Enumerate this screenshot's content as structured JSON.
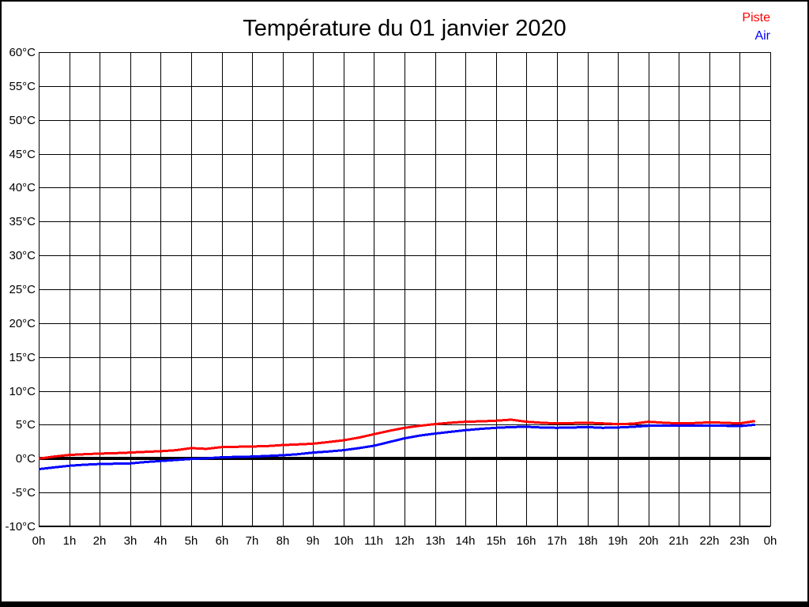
{
  "title": "Température du 01 janvier 2020",
  "legend": {
    "position": "top-right",
    "items": [
      {
        "label": "Piste",
        "color": "#ff0000"
      },
      {
        "label": "Air",
        "color": "#0000ff"
      }
    ]
  },
  "colors": {
    "background": "#ffffff",
    "grid": "#000000",
    "zero_line": "#000000",
    "frame": "#000000",
    "text": "#000000",
    "piste": "#ff0000",
    "air": "#0000ff"
  },
  "chart_data": {
    "type": "line",
    "title": "Température du 01 janvier 2020",
    "xlabel": "",
    "ylabel": "",
    "xlim": [
      0,
      24
    ],
    "ylim": [
      -10,
      60
    ],
    "y_tick_step": 5,
    "x_tick_step": 1,
    "grid": true,
    "zero_line": true,
    "legend_position": "top-right",
    "y_tick_labels": [
      "60°C",
      "55°C",
      "50°C",
      "45°C",
      "40°C",
      "35°C",
      "30°C",
      "25°C",
      "20°C",
      "15°C",
      "10°C",
      "5°C",
      "0°C",
      "-5°C",
      "-10°C"
    ],
    "y_tick_values": [
      60,
      55,
      50,
      45,
      40,
      35,
      30,
      25,
      20,
      15,
      10,
      5,
      0,
      -5,
      -10
    ],
    "x_tick_labels": [
      "0h",
      "1h",
      "2h",
      "3h",
      "4h",
      "5h",
      "6h",
      "7h",
      "8h",
      "9h",
      "10h",
      "11h",
      "12h",
      "13h",
      "14h",
      "15h",
      "16h",
      "17h",
      "18h",
      "19h",
      "20h",
      "21h",
      "22h",
      "23h",
      "0h"
    ],
    "x_tick_values": [
      0,
      1,
      2,
      3,
      4,
      5,
      6,
      7,
      8,
      9,
      10,
      11,
      12,
      13,
      14,
      15,
      16,
      17,
      18,
      19,
      20,
      21,
      22,
      23,
      24
    ],
    "series": [
      {
        "name": "Piste",
        "color": "#ff0000",
        "x": [
          0,
          0.5,
          1,
          1.5,
          2,
          2.5,
          3,
          3.5,
          4,
          4.5,
          5,
          5.5,
          6,
          6.5,
          7,
          7.5,
          8,
          8.5,
          9,
          9.5,
          10,
          10.5,
          11,
          11.5,
          12,
          12.5,
          13,
          13.5,
          14,
          14.5,
          15,
          15.5,
          16,
          16.5,
          17,
          17.5,
          18,
          18.5,
          19,
          19.5,
          20,
          20.5,
          21,
          21.5,
          22,
          22.5,
          23,
          23.5
        ],
        "values": [
          0.0,
          0.3,
          0.55,
          0.65,
          0.75,
          0.8,
          0.9,
          1.0,
          1.1,
          1.25,
          1.55,
          1.45,
          1.7,
          1.75,
          1.8,
          1.85,
          2.0,
          2.1,
          2.2,
          2.45,
          2.7,
          3.1,
          3.6,
          4.1,
          4.55,
          4.85,
          5.1,
          5.3,
          5.45,
          5.5,
          5.6,
          5.75,
          5.45,
          5.3,
          5.2,
          5.25,
          5.3,
          5.2,
          5.1,
          5.15,
          5.45,
          5.3,
          5.2,
          5.25,
          5.35,
          5.3,
          5.2,
          5.55
        ]
      },
      {
        "name": "Air",
        "color": "#0000ff",
        "x": [
          0,
          0.5,
          1,
          1.5,
          2,
          2.5,
          3,
          3.5,
          4,
          4.5,
          5,
          5.5,
          6,
          6.5,
          7,
          7.5,
          8,
          8.5,
          9,
          9.5,
          10,
          10.5,
          11,
          11.5,
          12,
          12.5,
          13,
          13.5,
          14,
          14.5,
          15,
          15.5,
          16,
          16.5,
          17,
          17.5,
          18,
          18.5,
          19,
          19.5,
          20,
          20.5,
          21,
          21.5,
          22,
          22.5,
          23,
          23.5
        ],
        "values": [
          -1.55,
          -1.3,
          -1.05,
          -0.9,
          -0.8,
          -0.75,
          -0.7,
          -0.5,
          -0.35,
          -0.2,
          -0.05,
          0.05,
          0.2,
          0.25,
          0.3,
          0.4,
          0.5,
          0.65,
          0.9,
          1.05,
          1.25,
          1.55,
          1.9,
          2.45,
          3.0,
          3.4,
          3.7,
          3.95,
          4.2,
          4.4,
          4.55,
          4.65,
          4.7,
          4.6,
          4.55,
          4.6,
          4.65,
          4.55,
          4.6,
          4.7,
          4.85,
          4.9,
          4.9,
          4.9,
          4.9,
          4.85,
          4.8,
          5.0
        ]
      }
    ]
  }
}
